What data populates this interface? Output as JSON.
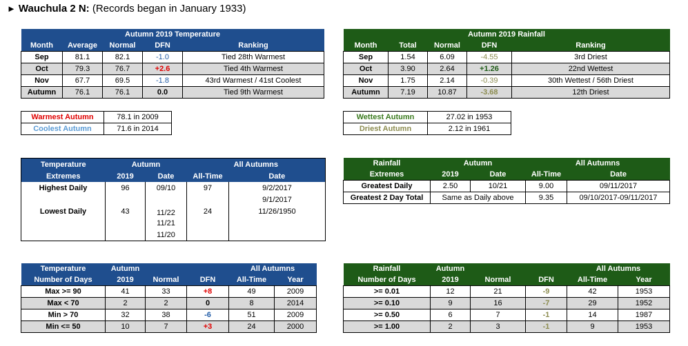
{
  "title": {
    "arrow": "►",
    "bold": "Wauchula 2 N:",
    "rest": " (Records began in January 1933)"
  },
  "temp_table": {
    "title": "Autumn 2019 Temperature",
    "headers": [
      "Month",
      "Average",
      "Normal",
      "DFN",
      "Ranking"
    ],
    "rows": [
      [
        "Sep",
        "81.1",
        "82.1",
        "-1.0",
        "Tied 28th Warmest"
      ],
      [
        "Oct",
        "79.3",
        "76.7",
        "+2.6",
        "Tied 4th Warmest"
      ],
      [
        "Nov",
        "67.7",
        "69.5",
        "-1.8",
        "43rd Warmest / 41st Coolest"
      ],
      [
        "Autumn",
        "76.1",
        "76.1",
        "0.0",
        "Tied 9th Warmest"
      ]
    ]
  },
  "rain_table": {
    "title": "Autumn 2019 Rainfall",
    "headers": [
      "Month",
      "Total",
      "Normal",
      "DFN",
      "Ranking"
    ],
    "rows": [
      [
        "Sep",
        "1.54",
        "6.09",
        "-4.55",
        "3rd Driest"
      ],
      [
        "Oct",
        "3.90",
        "2.64",
        "+1.26",
        "22nd Wettest"
      ],
      [
        "Nov",
        "1.75",
        "2.14",
        "-0.39",
        "30th Wettest / 56th Driest"
      ],
      [
        "Autumn",
        "7.19",
        "10.87",
        "-3.68",
        "12th Driest"
      ]
    ]
  },
  "temp_records": {
    "warmest_label": "Warmest Autumn",
    "warmest_value": "78.1 in 2009",
    "coolest_label": "Coolest Autumn",
    "coolest_value": "71.6 in 2014"
  },
  "rain_records": {
    "wettest_label": "Wettest Autumn",
    "wettest_value": "27.02 in 1953",
    "driest_label": "Driest Autumn",
    "driest_value": "2.12 in 1961"
  },
  "temp_extremes": {
    "h1": "Temperature",
    "h2": "Extremes",
    "autumn": "Autumn",
    "all": "All Autumns",
    "c2019": "2019",
    "date": "Date",
    "alltime": "All-Time",
    "date2": "Date",
    "highest_label": "Highest Daily",
    "highest_2019": "96",
    "highest_date": "09/10",
    "highest_alltime": "97",
    "highest_dates": [
      "9/2/2017",
      "9/1/2017"
    ],
    "lowest_label": "Lowest Daily",
    "lowest_2019": "43",
    "lowest_dates_2019": [
      "11/22",
      "11/21",
      "11/20"
    ],
    "lowest_alltime": "24",
    "lowest_date": "11/26/1950"
  },
  "rain_extremes": {
    "h1": "Rainfall",
    "h2": "Extremes",
    "autumn": "Autumn",
    "all": "All Autumns",
    "c2019": "2019",
    "date": "Date",
    "alltime": "All-Time",
    "date2": "Date",
    "rows": [
      {
        "label": "Greatest Daily",
        "v2019": "2.50",
        "date": "10/21",
        "alltime": "9.00",
        "date2": "09/11/2017"
      },
      {
        "label": "Greatest 2 Day Total",
        "v2019": "Same as Daily above",
        "date": "",
        "alltime": "9.35",
        "date2": "09/10/2017-09/11/2017"
      }
    ]
  },
  "temp_days": {
    "h1": "Temperature",
    "h2": "Number of Days",
    "autumn": "Autumn",
    "c2019": "2019",
    "normal": "Normal",
    "dfn": "DFN",
    "all": "All Autumns",
    "alltime": "All-Time",
    "year": "Year",
    "rows": [
      [
        "Max >= 90",
        "41",
        "33",
        "+8",
        "49",
        "2009"
      ],
      [
        "Max < 70",
        "2",
        "2",
        "0",
        "8",
        "2014"
      ],
      [
        "Min > 70",
        "32",
        "38",
        "-6",
        "51",
        "2009"
      ],
      [
        "Min <= 50",
        "10",
        "7",
        "+3",
        "24",
        "2000"
      ]
    ]
  },
  "rain_days": {
    "h1": "Rainfall",
    "h2": "Number of Days",
    "autumn": "Autumn",
    "c2019": "2019",
    "normal": "Normal",
    "dfn": "DFN",
    "all": "All Autumns",
    "alltime": "All-Time",
    "year": "Year",
    "rows": [
      [
        ">= 0.01",
        "12",
        "21",
        "-9",
        "42",
        "1953"
      ],
      [
        ">= 0.10",
        "9",
        "16",
        "-7",
        "29",
        "1952"
      ],
      [
        ">= 0.50",
        "6",
        "7",
        "-1",
        "14",
        "1987"
      ],
      [
        ">= 1.00",
        "2",
        "3",
        "-1",
        "9",
        "1953"
      ]
    ]
  },
  "colors": {
    "blue_header": "#1f4e8e",
    "green_header": "#1e5b17",
    "gray_row": "#d9d9d9"
  }
}
